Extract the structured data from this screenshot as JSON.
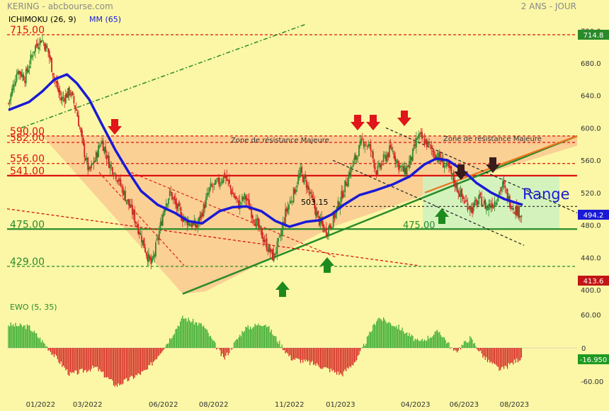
{
  "header": {
    "title": "KERING - abcbourse.com",
    "period": "2 ANS - JOUR"
  },
  "indicators": {
    "ichimoku": "ICHIMOKU (26, 9)",
    "mm": "MM (65)",
    "ewo": "EWO (5, 35)"
  },
  "colors": {
    "background": "#fbf7a6",
    "up_candle": "#2e8b2e",
    "down_candle": "#d42020",
    "mm_line": "#1a1ad6",
    "resistance_zone": "#f9c990",
    "range_box": "#cdf2c0",
    "support_green": "#2a8a2a",
    "resistance_red": "#dd1111"
  },
  "chart_data": [
    {
      "type": "candlestick",
      "title": "KERING",
      "x_ticks": [
        "01/2022",
        "03/2022",
        "06/2022",
        "08/2022",
        "11/2022",
        "01/2023",
        "04/2023",
        "06/2023",
        "08/2023"
      ],
      "y_ticks": [
        "720.0",
        "680.0",
        "640.0",
        "600.0",
        "560.0",
        "520.0",
        "480.0",
        "440.0",
        "400.0"
      ],
      "ylim": [
        395,
        735
      ],
      "last_price_label": "714.8",
      "current_price_label": "494.2",
      "low_price_label": "413.6",
      "close_path": [
        {
          "d": "2021-11-25",
          "v": 630
        },
        {
          "d": "2021-12-06",
          "v": 672
        },
        {
          "d": "2021-12-15",
          "v": 662
        },
        {
          "d": "2021-12-27",
          "v": 700
        },
        {
          "d": "2022-01-04",
          "v": 710
        },
        {
          "d": "2022-01-12",
          "v": 695
        },
        {
          "d": "2022-01-20",
          "v": 660
        },
        {
          "d": "2022-01-28",
          "v": 635
        },
        {
          "d": "2022-02-08",
          "v": 645
        },
        {
          "d": "2022-02-16",
          "v": 620
        },
        {
          "d": "2022-02-24",
          "v": 575
        },
        {
          "d": "2022-03-03",
          "v": 545
        },
        {
          "d": "2022-03-10",
          "v": 560
        },
        {
          "d": "2022-03-18",
          "v": 585
        },
        {
          "d": "2022-03-28",
          "v": 555
        },
        {
          "d": "2022-04-06",
          "v": 540
        },
        {
          "d": "2022-04-14",
          "v": 520
        },
        {
          "d": "2022-04-25",
          "v": 495
        },
        {
          "d": "2022-05-04",
          "v": 470
        },
        {
          "d": "2022-05-12",
          "v": 445
        },
        {
          "d": "2022-05-18",
          "v": 430
        },
        {
          "d": "2022-05-26",
          "v": 465
        },
        {
          "d": "2022-06-03",
          "v": 505
        },
        {
          "d": "2022-06-10",
          "v": 520
        },
        {
          "d": "2022-06-16",
          "v": 505
        },
        {
          "d": "2022-06-24",
          "v": 490
        },
        {
          "d": "2022-07-04",
          "v": 482
        },
        {
          "d": "2022-07-12",
          "v": 478
        },
        {
          "d": "2022-07-20",
          "v": 500
        },
        {
          "d": "2022-07-28",
          "v": 525
        },
        {
          "d": "2022-08-05",
          "v": 530
        },
        {
          "d": "2022-08-15",
          "v": 542
        },
        {
          "d": "2022-08-24",
          "v": 520
        },
        {
          "d": "2022-09-01",
          "v": 505
        },
        {
          "d": "2022-09-09",
          "v": 515
        },
        {
          "d": "2022-09-19",
          "v": 490
        },
        {
          "d": "2022-09-28",
          "v": 470
        },
        {
          "d": "2022-10-05",
          "v": 455
        },
        {
          "d": "2022-10-13",
          "v": 440
        },
        {
          "d": "2022-10-21",
          "v": 462
        },
        {
          "d": "2022-10-28",
          "v": 495
        },
        {
          "d": "2022-11-07",
          "v": 520
        },
        {
          "d": "2022-11-15",
          "v": 545
        },
        {
          "d": "2022-11-23",
          "v": 530
        },
        {
          "d": "2022-12-01",
          "v": 505
        },
        {
          "d": "2022-12-08",
          "v": 485
        },
        {
          "d": "2022-12-16",
          "v": 472
        },
        {
          "d": "2022-12-23",
          "v": 482
        },
        {
          "d": "2023-01-04",
          "v": 515
        },
        {
          "d": "2023-01-12",
          "v": 540
        },
        {
          "d": "2023-01-20",
          "v": 560
        },
        {
          "d": "2023-01-30",
          "v": 585
        },
        {
          "d": "2023-02-08",
          "v": 575
        },
        {
          "d": "2023-02-16",
          "v": 545
        },
        {
          "d": "2023-02-24",
          "v": 560
        },
        {
          "d": "2023-03-06",
          "v": 575
        },
        {
          "d": "2023-03-14",
          "v": 555
        },
        {
          "d": "2023-03-22",
          "v": 545
        },
        {
          "d": "2023-03-31",
          "v": 565
        },
        {
          "d": "2023-04-07",
          "v": 590
        },
        {
          "d": "2023-04-17",
          "v": 582
        },
        {
          "d": "2023-04-26",
          "v": 570
        },
        {
          "d": "2023-05-05",
          "v": 560
        },
        {
          "d": "2023-05-15",
          "v": 548
        },
        {
          "d": "2023-05-25",
          "v": 525
        },
        {
          "d": "2023-06-02",
          "v": 510
        },
        {
          "d": "2023-06-12",
          "v": 500
        },
        {
          "d": "2023-06-21",
          "v": 512
        },
        {
          "d": "2023-06-30",
          "v": 502
        },
        {
          "d": "2023-07-10",
          "v": 510
        },
        {
          "d": "2023-07-19",
          "v": 530
        },
        {
          "d": "2023-07-27",
          "v": 510
        },
        {
          "d": "2023-08-03",
          "v": 500
        },
        {
          "d": "2023-08-11",
          "v": 494
        }
      ],
      "mm65_path": [
        {
          "d": "2021-11-25",
          "v": 622
        },
        {
          "d": "2021-12-20",
          "v": 632
        },
        {
          "d": "2022-01-05",
          "v": 645
        },
        {
          "d": "2022-01-20",
          "v": 660
        },
        {
          "d": "2022-02-04",
          "v": 666
        },
        {
          "d": "2022-02-16",
          "v": 655
        },
        {
          "d": "2022-03-03",
          "v": 635
        },
        {
          "d": "2022-03-18",
          "v": 605
        },
        {
          "d": "2022-04-04",
          "v": 572
        },
        {
          "d": "2022-04-20",
          "v": 545
        },
        {
          "d": "2022-05-05",
          "v": 522
        },
        {
          "d": "2022-05-25",
          "v": 505
        },
        {
          "d": "2022-06-15",
          "v": 495
        },
        {
          "d": "2022-07-01",
          "v": 485
        },
        {
          "d": "2022-07-18",
          "v": 482
        },
        {
          "d": "2022-08-08",
          "v": 497
        },
        {
          "d": "2022-08-24",
          "v": 502
        },
        {
          "d": "2022-09-10",
          "v": 503
        },
        {
          "d": "2022-09-28",
          "v": 497
        },
        {
          "d": "2022-10-15",
          "v": 485
        },
        {
          "d": "2022-11-01",
          "v": 478
        },
        {
          "d": "2022-11-21",
          "v": 484
        },
        {
          "d": "2022-12-08",
          "v": 486
        },
        {
          "d": "2022-12-22",
          "v": 493
        },
        {
          "d": "2023-01-06",
          "v": 505
        },
        {
          "d": "2023-01-25",
          "v": 517
        },
        {
          "d": "2023-02-14",
          "v": 523
        },
        {
          "d": "2023-03-06",
          "v": 530
        },
        {
          "d": "2023-03-27",
          "v": 540
        },
        {
          "d": "2023-04-14",
          "v": 555
        },
        {
          "d": "2023-04-28",
          "v": 562
        },
        {
          "d": "2023-05-12",
          "v": 560
        },
        {
          "d": "2023-05-30",
          "v": 548
        },
        {
          "d": "2023-06-16",
          "v": 532
        },
        {
          "d": "2023-07-04",
          "v": 520
        },
        {
          "d": "2023-07-20",
          "v": 512
        },
        {
          "d": "2023-08-11",
          "v": 505
        }
      ],
      "horizontal_levels": [
        {
          "label": "715.00",
          "value": 715
        },
        {
          "label": "590.00",
          "value": 590
        },
        {
          "label": "582.00",
          "value": 582
        },
        {
          "label": "556.00",
          "value": 556
        },
        {
          "label": "541.00",
          "value": 541
        },
        {
          "label": "475.00",
          "value": 475
        },
        {
          "label": "429.00",
          "value": 429
        }
      ],
      "annotations": {
        "zone_text": "Zone de résistance Majeure",
        "range_text": "Range",
        "level_503": "503.15",
        "level_475_inner": "475.00"
      }
    },
    {
      "type": "bar",
      "title": "EWO (5, 35)",
      "y_ticks": [
        "60.00",
        "0",
        "-60.00"
      ],
      "ylim": [
        -70,
        75
      ],
      "current_value_label": "-16.950"
    }
  ]
}
